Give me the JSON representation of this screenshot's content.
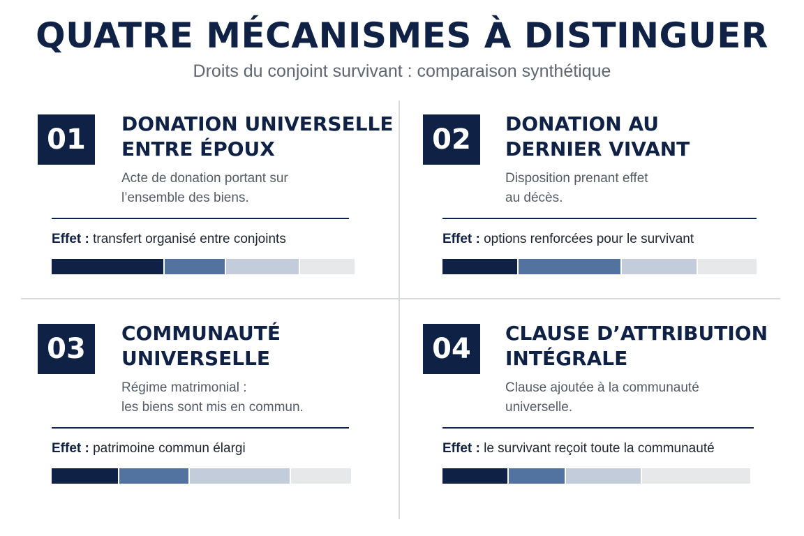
{
  "header": {
    "title": "QUATRE MÉCANISMES À DISTINGUER",
    "subtitle": "Droits du conjoint survivant : comparaison synthétique"
  },
  "cards": [
    {
      "number": "01",
      "title_line1": "DONATION UNIVERSELLE",
      "title_line2": "ENTRE ÉPOUX",
      "desc_line1": "Acte de donation portant sur",
      "desc_line2": "l’ensemble des biens.",
      "effect_label": "Effet :",
      "effect_text": "transfert organisé entre conjoints",
      "bar_segments": [
        0.37,
        0.2,
        0.24,
        0.18
      ]
    },
    {
      "number": "02",
      "title_line1": "DONATION AU",
      "title_line2": "DERNIER VIVANT",
      "desc_line1": "Disposition prenant effet",
      "desc_line2": "au décès.",
      "effect_label": "Effet :",
      "effect_text": "options renforcées pour le survivant",
      "bar_segments": [
        0.24,
        0.33,
        0.24,
        0.19
      ]
    },
    {
      "number": "03",
      "title_line1": "COMMUNAUTÉ",
      "title_line2": "UNIVERSELLE",
      "desc_line1": "Régime matrimonial :",
      "desc_line2": "les biens sont mis en commun.",
      "effect_label": "Effet :",
      "effect_text": "patrimoine commun élargi",
      "bar_segments": [
        0.22,
        0.23,
        0.33,
        0.2
      ]
    },
    {
      "number": "04",
      "title_line1": "CLAUSE D’ATTRIBUTION",
      "title_line2": "INTÉGRALE",
      "desc_line1": "Clause ajoutée à la communauté",
      "desc_line2": "universelle.",
      "effect_label": "Effet :",
      "effect_text": "le survivant reçoit toute la communauté",
      "bar_segments": [
        0.21,
        0.18,
        0.24,
        0.35
      ]
    }
  ]
}
